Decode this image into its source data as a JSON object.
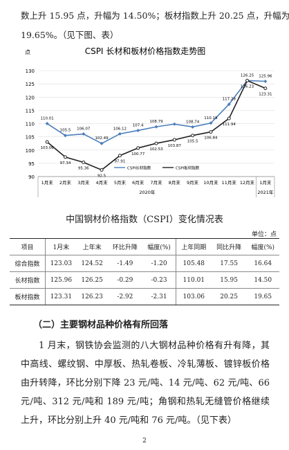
{
  "intro": {
    "lines": [
      "数上升 15.95 点，升幅为 14.50%；板材指数上升 20.25 点，升幅为",
      "19.65%。（见下图、表）"
    ]
  },
  "chart_data": {
    "type": "line",
    "title": "CSPI 长材和板材价格指数走势图",
    "y_label": "点",
    "categories": [
      "1月末",
      "2月末",
      "3月末",
      "4月末",
      "5月末",
      "6月末",
      "7月末",
      "8月末",
      "9月末",
      "10月末",
      "11月末",
      "12月末",
      "1月末"
    ],
    "groups": [
      {
        "label": "2020年",
        "span": [
          0,
          11
        ]
      },
      {
        "label": "2021年",
        "span": [
          12,
          12
        ]
      }
    ],
    "ylim": [
      90,
      130
    ],
    "yticks": [
      90,
      95,
      100,
      105,
      110,
      115,
      120,
      125,
      130
    ],
    "series": [
      {
        "name": "CSPI长材指数",
        "color": "#4a7ebb",
        "marker": "diamond",
        "values": [
          110.01,
          105.5,
          106.07,
          102.49,
          106.12,
          107.4,
          108.79,
          109.8,
          108.74,
          110.19,
          117.29,
          126.25,
          125.96
        ],
        "value_labels": [
          "110.01",
          "105.5",
          "106.07",
          "102.49",
          "106.12",
          "107.4",
          "108.79",
          null,
          "108.74",
          "110.19",
          "117.29",
          "126.25",
          "125.96"
        ]
      },
      {
        "name": "CSPI板材指数",
        "color": "#222222",
        "marker": "circle",
        "values": [
          103.06,
          97.34,
          95.36,
          92.5,
          97.91,
          100.77,
          102.53,
          103.87,
          105.5,
          106.84,
          111.94,
          126.23,
          123.31
        ],
        "value_labels": [
          "103.06",
          "97.34",
          "95.36",
          "92.5",
          "97.91",
          "100.77",
          "102.53",
          "103.87",
          "105.5",
          "106.84",
          "111.94",
          "126.23",
          "123.31"
        ]
      }
    ]
  },
  "table": {
    "title": "中国钢材价格指数（CSPI）变化情况表",
    "unit": "单位：点",
    "header": [
      "项目",
      "1月末",
      "上年末",
      "环比升降",
      "幅度(%)",
      "上年同期",
      "同比升降",
      "幅度(%)"
    ],
    "rows": [
      [
        "综合指数",
        "123.03",
        "124.52",
        "-1.49",
        "-1.20",
        "105.48",
        "17.55",
        "16.64"
      ],
      [
        "长材指数",
        "125.96",
        "126.25",
        "-0.29",
        "-0.23",
        "110.01",
        "15.95",
        "14.50"
      ],
      [
        "板材指数",
        "123.31",
        "126.23",
        "-2.92",
        "-2.31",
        "103.06",
        "20.25",
        "19.65"
      ]
    ]
  },
  "section": {
    "heading": "（二）主要钢材品种价格有所回落",
    "paragraph": "1 月末，钢铁协会监测的八大钢材品种价格有升有降，其中高线、螺纹钢、中厚板、热轧卷板、冷轧薄板、镀锌板价格由升转降，环比分别下降 23 元/吨、14 元/吨、62 元/吨、66 元/吨、312 元/吨和 189 元/吨；角钢和热轧无缝管价格继续上升，环比分别上升 40 元/吨和 76 元/吨。（见下表）"
  },
  "page_number": "2"
}
